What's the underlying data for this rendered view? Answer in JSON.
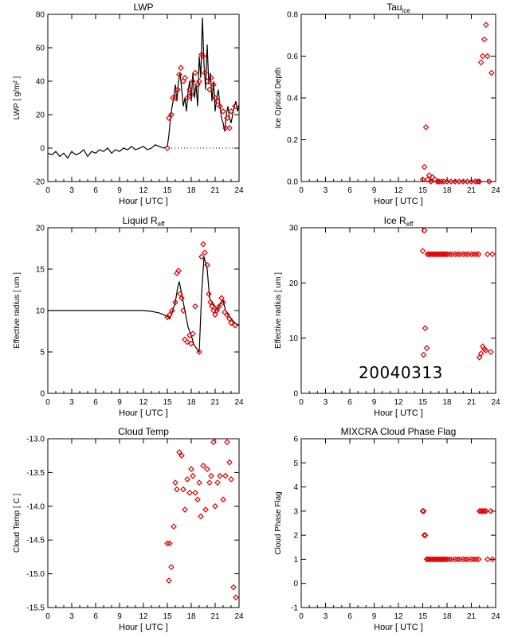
{
  "colors": {
    "axis": "#000000",
    "marker": "#e00000",
    "line": "#000000"
  },
  "date_stamp": "20040313",
  "chart_data": [
    {
      "type": "line",
      "title": "LWP",
      "xlabel": "Hour [ UTC ]",
      "ylabel": "LWP [ g/m² ]",
      "xlim": [
        0,
        24
      ],
      "ylim": [
        -20,
        80
      ],
      "xticks": [
        "0",
        "3",
        "6",
        "9",
        "12",
        "15",
        "18",
        "21",
        "24"
      ],
      "yticks": [
        "-20",
        "0",
        "20",
        "40",
        "60",
        "80"
      ],
      "zero_line": true,
      "series": [
        {
          "style": "line",
          "x": [
            0,
            0.5,
            1,
            1.5,
            2,
            2.5,
            3,
            3.5,
            4,
            4.5,
            5,
            5.5,
            6,
            6.5,
            7,
            7.5,
            8,
            8.5,
            9,
            9.5,
            10,
            10.5,
            11,
            11.5,
            12,
            12.5,
            13,
            13.5,
            14,
            14.5,
            15,
            15.2,
            15.4,
            15.6,
            15.8,
            16,
            16.2,
            16.4,
            16.6,
            16.8,
            17,
            17.2,
            17.4,
            17.6,
            17.8,
            18,
            18.2,
            18.4,
            18.6,
            18.8,
            19,
            19.2,
            19.4,
            19.6,
            19.8,
            20,
            20.2,
            20.4,
            20.6,
            20.8,
            21,
            21.2,
            21.4,
            21.6,
            21.8,
            22,
            22.2,
            22.4,
            22.6,
            22.8,
            23,
            23.2,
            23.4,
            23.6,
            23.8,
            24
          ],
          "y": [
            -3,
            -4,
            -2,
            -5,
            -3,
            -6,
            -2,
            -4,
            -3,
            -1,
            -5,
            -2,
            -3,
            -1,
            -2,
            0,
            -3,
            -1,
            -2,
            0,
            -1,
            1,
            -1,
            0,
            1,
            -1,
            0,
            2,
            1,
            0,
            1,
            8,
            18,
            25,
            30,
            38,
            28,
            40,
            45,
            35,
            25,
            30,
            22,
            34,
            40,
            28,
            45,
            30,
            38,
            25,
            55,
            42,
            78,
            50,
            35,
            62,
            38,
            45,
            28,
            40,
            22,
            30,
            35,
            25,
            18,
            15,
            10,
            20,
            25,
            18,
            15,
            20,
            25,
            28,
            22,
            26
          ]
        },
        {
          "style": "markers",
          "x": [
            15.0,
            15.2,
            15.5,
            15.7,
            16.0,
            16.3,
            16.5,
            16.7,
            17.0,
            17.2,
            17.5,
            17.8,
            18.0,
            18.2,
            18.5,
            18.8,
            19.0,
            19.3,
            19.5,
            19.7,
            20.0,
            20.3,
            20.5,
            20.8,
            21.0,
            21.3,
            21.6,
            22.0,
            22.3,
            22.5,
            22.8,
            23.0,
            23.5
          ],
          "y": [
            0,
            18,
            20,
            30,
            30,
            35,
            44,
            48,
            40,
            42,
            30,
            35,
            32,
            40,
            45,
            38,
            40,
            56,
            55,
            45,
            40,
            35,
            42,
            38,
            30,
            28,
            25,
            22,
            12,
            18,
            12,
            22,
            25
          ]
        }
      ]
    },
    {
      "type": "scatter",
      "title": "Tau_ice",
      "xlabel": "Hour [ UTC ]",
      "ylabel": "Ice Optical Depth",
      "xlim": [
        0,
        24
      ],
      "ylim": [
        0,
        0.8
      ],
      "xticks": [
        "0",
        "3",
        "6",
        "9",
        "12",
        "15",
        "18",
        "21",
        "24"
      ],
      "yticks": [
        "0.0",
        "0.2",
        "0.4",
        "0.6",
        "0.8"
      ],
      "series": [
        {
          "x": [
            15.0,
            15.2,
            15.4,
            15.6,
            15.8,
            16.0,
            16.2,
            16.5,
            16.8,
            17.0,
            17.3,
            17.6,
            18.0,
            18.5,
            19.0,
            19.5,
            20.0,
            20.5,
            21.0,
            21.5,
            21.8,
            22.0,
            22.2,
            22.4,
            22.6,
            22.8,
            23.0,
            23.2,
            23.5
          ],
          "y": [
            0.01,
            0.07,
            0.26,
            0.01,
            0.03,
            0.0,
            0.02,
            0.01,
            0.0,
            0.0,
            0.0,
            0.0,
            0.0,
            0.0,
            0.0,
            0.0,
            0.0,
            0.0,
            0.0,
            0.0,
            0.0,
            0.0,
            0.57,
            0.6,
            0.68,
            0.75,
            0.6,
            0.0,
            0.52
          ]
        }
      ]
    },
    {
      "type": "line",
      "title": "Liquid R_eff",
      "xlabel": "Hour [ UTC ]",
      "ylabel": "Effective radius [ um ]",
      "xlim": [
        0,
        24
      ],
      "ylim": [
        0,
        20
      ],
      "xticks": [
        "0",
        "3",
        "6",
        "9",
        "12",
        "15",
        "18",
        "21",
        "24"
      ],
      "yticks": [
        "0",
        "5",
        "10",
        "15",
        "20"
      ],
      "series": [
        {
          "style": "line",
          "x": [
            0,
            3,
            6,
            9,
            12,
            13,
            14,
            15,
            15.3,
            15.6,
            16.0,
            16.3,
            16.5,
            16.8,
            17.0,
            17.3,
            17.6,
            18.0,
            18.3,
            18.6,
            19.0,
            19.3,
            19.6,
            20.0,
            20.3,
            20.6,
            21.0,
            21.3,
            21.6,
            22.0,
            22.3,
            22.6,
            23.0,
            23.5,
            24
          ],
          "y": [
            10,
            10,
            10,
            10,
            10,
            9.9,
            9.7,
            9.3,
            9.0,
            9.8,
            11.0,
            12.8,
            13.5,
            12.0,
            11.0,
            9.5,
            8.0,
            7.0,
            6.0,
            5.5,
            5.0,
            12.0,
            16.5,
            15.0,
            11.5,
            11.0,
            10.5,
            10.0,
            10.8,
            11.2,
            10.0,
            9.5,
            9.0,
            8.5,
            8.2
          ]
        },
        {
          "style": "markers",
          "x": [
            15.0,
            15.3,
            15.6,
            16.0,
            16.2,
            16.4,
            16.6,
            16.8,
            17.0,
            17.2,
            17.5,
            17.8,
            18.0,
            18.2,
            18.5,
            19.0,
            19.3,
            19.5,
            19.7,
            20.0,
            20.2,
            20.4,
            20.6,
            20.8,
            21.0,
            21.2,
            21.5,
            21.8,
            22.0,
            22.2,
            22.5,
            22.8,
            23.0,
            23.5
          ],
          "y": [
            9.2,
            9.5,
            10.0,
            11.0,
            14.5,
            14.8,
            12.0,
            11.5,
            10.0,
            6.5,
            6.2,
            7.0,
            6.0,
            7.2,
            10.5,
            5.0,
            16.5,
            18.0,
            17.0,
            15.5,
            12.0,
            11.0,
            10.5,
            10.0,
            9.5,
            10.0,
            10.5,
            11.5,
            11.0,
            9.8,
            9.5,
            9.0,
            8.5,
            8.2
          ]
        }
      ]
    },
    {
      "type": "scatter",
      "title": "Ice R_eff",
      "xlabel": "Hour [ UTC ]",
      "ylabel": "Effective radius [ um ]",
      "xlim": [
        0,
        24
      ],
      "ylim": [
        0,
        30
      ],
      "xticks": [
        "0",
        "3",
        "6",
        "9",
        "12",
        "15",
        "18",
        "21",
        "24"
      ],
      "yticks": [
        "0",
        "10",
        "20",
        "30"
      ],
      "series": [
        {
          "x": [
            15.0,
            15.1,
            15.2,
            15.3,
            15.5,
            15.6,
            15.8,
            16.0,
            16.2,
            16.4,
            16.6,
            16.8,
            17.0,
            17.2,
            17.4,
            17.6,
            17.8,
            18.0,
            18.3,
            18.6,
            19.0,
            19.3,
            19.6,
            20.0,
            20.3,
            20.6,
            21.0,
            21.3,
            21.6,
            21.9,
            22.0,
            22.2,
            22.4,
            22.6,
            22.8,
            23.0,
            23.4,
            23.6
          ],
          "y": [
            25.8,
            7.0,
            29.5,
            11.8,
            8.2,
            25.2,
            25.2,
            25.2,
            25.2,
            25.2,
            25.2,
            25.2,
            25.2,
            25.2,
            25.2,
            25.2,
            25.2,
            25.2,
            25.2,
            25.2,
            25.2,
            25.2,
            25.2,
            25.2,
            25.2,
            25.2,
            25.2,
            25.2,
            25.2,
            25.2,
            6.5,
            7.2,
            8.5,
            8.0,
            7.8,
            25.2,
            7.5,
            25.2
          ]
        }
      ]
    },
    {
      "type": "scatter",
      "title": "Cloud Temp",
      "xlabel": "Hour [ UTC ]",
      "ylabel": "Cloud Temp [ C ]",
      "xlim": [
        0,
        24
      ],
      "ylim": [
        -15.5,
        -13.0
      ],
      "xticks": [
        "0",
        "3",
        "6",
        "9",
        "12",
        "15",
        "18",
        "21",
        "24"
      ],
      "yticks": [
        "-13.0",
        "-13.5",
        "-14.0",
        "-14.5",
        "-15.0",
        "-15.5"
      ],
      "series": [
        {
          "x": [
            15.0,
            15.2,
            15.3,
            15.5,
            15.8,
            16.0,
            16.2,
            16.5,
            16.8,
            17.0,
            17.2,
            17.5,
            17.8,
            18.0,
            18.2,
            18.5,
            18.8,
            19.0,
            19.2,
            19.5,
            19.8,
            20.0,
            20.3,
            20.5,
            20.8,
            21.0,
            21.3,
            21.6,
            22.0,
            22.3,
            22.5,
            22.8,
            23.0,
            23.3,
            23.6
          ],
          "y": [
            -14.55,
            -15.1,
            -14.55,
            -14.9,
            -14.3,
            -13.65,
            -13.75,
            -13.2,
            -13.25,
            -13.75,
            -14.05,
            -13.6,
            -13.8,
            -13.45,
            -13.55,
            -13.8,
            -13.9,
            -13.65,
            -14.15,
            -13.4,
            -14.05,
            -13.45,
            -13.65,
            -13.55,
            -13.05,
            -14.0,
            -13.65,
            -13.55,
            -13.9,
            -13.55,
            -13.05,
            -13.35,
            -13.6,
            -15.2,
            -15.35
          ]
        }
      ]
    },
    {
      "type": "scatter",
      "title": "MIXCRA Cloud Phase Flag",
      "xlabel": "Hour [ UTC ]",
      "ylabel": "Cloud Phase Flag",
      "xlim": [
        0,
        24
      ],
      "ylim": [
        -1,
        6
      ],
      "xticks": [
        "0",
        "3",
        "6",
        "9",
        "12",
        "15",
        "18",
        "21",
        "24"
      ],
      "yticks": [
        "-1",
        "0",
        "1",
        "2",
        "3",
        "4",
        "5",
        "6"
      ],
      "series": [
        {
          "x": [
            15.0,
            15.1,
            15.2,
            15.3,
            15.5,
            15.6,
            15.8,
            16.0,
            16.2,
            16.4,
            16.6,
            16.8,
            17.0,
            17.2,
            17.4,
            17.6,
            17.8,
            18.0,
            18.3,
            18.6,
            19.0,
            19.3,
            19.6,
            20.0,
            20.3,
            20.6,
            21.0,
            21.3,
            21.6,
            21.9,
            22.0,
            22.2,
            22.4,
            22.6,
            22.8,
            23.0,
            23.4,
            23.6
          ],
          "y": [
            3,
            3,
            2,
            2,
            1,
            1,
            1,
            1,
            1,
            1,
            1,
            1,
            1,
            1,
            1,
            1,
            1,
            1,
            1,
            1,
            1,
            1,
            1,
            1,
            1,
            1,
            1,
            1,
            1,
            1,
            3,
            3,
            3,
            3,
            3,
            1,
            3,
            1
          ]
        }
      ]
    }
  ]
}
